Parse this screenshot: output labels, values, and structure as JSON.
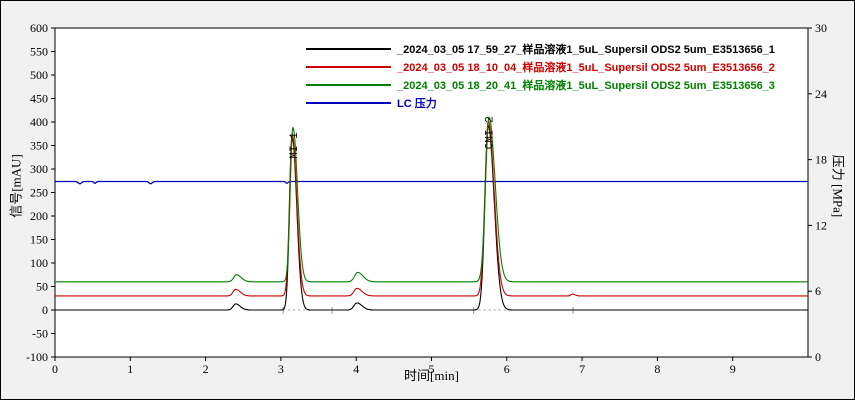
{
  "colors": {
    "background": "#f1f1f1",
    "plot_background": "#ffffff",
    "frame": "#000000",
    "integration_marks": "#999999"
  },
  "chart_data": {
    "type": "line",
    "title": "",
    "xlabel": "时间[min]",
    "ylabel_left": "信号[mAU]",
    "ylabel_right": "压力 [MPa]",
    "xlim": [
      0,
      10
    ],
    "xticks": [
      0,
      1,
      2,
      3,
      4,
      5,
      6,
      7,
      8,
      9
    ],
    "ylim_left": [
      -100,
      600
    ],
    "yticks_left": [
      600,
      550,
      500,
      450,
      400,
      350,
      300,
      250,
      200,
      150,
      100,
      50,
      0,
      -50,
      -100
    ],
    "ylim_right": [
      0,
      30
    ],
    "yticks_right": [
      0,
      6,
      12,
      18,
      24,
      30
    ],
    "grid": false,
    "legend_position": "top-center-inside",
    "series": [
      {
        "name": "_2024_03_05 17_59_27_样品溶液1_5uL_Supersil ODS2 5um_E3513656_1",
        "color": "#000000",
        "axis": "left",
        "unit": "mAU",
        "baseline_mau": 0,
        "peaks": [
          {
            "time_min": 2.4,
            "height_mau": 13,
            "sigma_min": 0.035
          },
          {
            "time_min": 3.15,
            "height_mau": 368,
            "sigma_min": 0.035
          },
          {
            "time_min": 4.01,
            "height_mau": 15,
            "sigma_min": 0.04
          },
          {
            "time_min": 5.755,
            "height_mau": 392,
            "sigma_min": 0.045
          }
        ]
      },
      {
        "name": "_2024_03_05 18_10_04_样品溶液1_5uL_Supersil ODS2 5um_E3513656_2",
        "color": "#cc0000",
        "axis": "left",
        "unit": "mAU",
        "baseline_mau": 30,
        "peaks": [
          {
            "time_min": 2.4,
            "height_mau": 14,
            "sigma_min": 0.035
          },
          {
            "time_min": 3.15,
            "height_mau": 345,
            "sigma_min": 0.035
          },
          {
            "time_min": 4.01,
            "height_mau": 16,
            "sigma_min": 0.04
          },
          {
            "time_min": 5.755,
            "height_mau": 372,
            "sigma_min": 0.045
          },
          {
            "time_min": 6.87,
            "height_mau": 4,
            "sigma_min": 0.02
          }
        ]
      },
      {
        "name": "_2024_03_05 18_20_41_样品溶液1_5uL_Supersil ODS2 5um_E3513656_3",
        "color": "#008000",
        "axis": "left",
        "unit": "mAU",
        "baseline_mau": 60,
        "peaks": [
          {
            "time_min": 2.41,
            "height_mau": 15,
            "sigma_min": 0.037
          },
          {
            "time_min": 3.16,
            "height_mau": 328,
            "sigma_min": 0.035
          },
          {
            "time_min": 4.02,
            "height_mau": 20,
            "sigma_min": 0.042
          },
          {
            "time_min": 5.765,
            "height_mau": 350,
            "sigma_min": 0.047
          }
        ]
      },
      {
        "name": "LC 压力",
        "color": "#0000bb",
        "axis": "right",
        "unit": "MPa",
        "baseline_mpa": 16.0,
        "dips": [
          {
            "time_min": 0.33,
            "depth_mpa": 0.2,
            "sigma_min": 0.02
          },
          {
            "time_min": 0.53,
            "depth_mpa": 0.15,
            "sigma_min": 0.015
          },
          {
            "time_min": 1.27,
            "depth_mpa": 0.2,
            "sigma_min": 0.02
          },
          {
            "time_min": 3.08,
            "depth_mpa": 0.15,
            "sigma_min": 0.015
          }
        ]
      }
    ],
    "peak_labels": [
      {
        "text": "MI 1",
        "time_min": 3.16,
        "apex_mau": 390
      },
      {
        "text": "CMI 2",
        "time_min": 5.76,
        "apex_mau": 410
      }
    ],
    "integration_baselines": [
      {
        "from_min": 3.03,
        "to_min": 3.68,
        "at_mau": 0
      },
      {
        "from_min": 5.56,
        "to_min": 6.88,
        "at_mau": 0
      }
    ]
  }
}
